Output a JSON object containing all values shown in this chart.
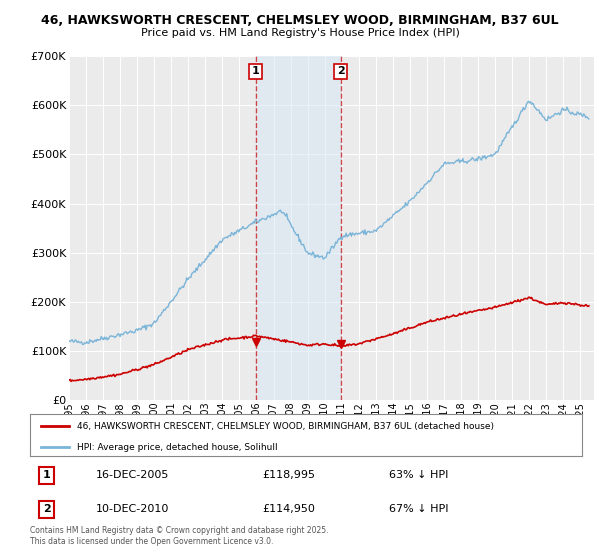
{
  "title": "46, HAWKSWORTH CRESCENT, CHELMSLEY WOOD, BIRMINGHAM, B37 6UL",
  "subtitle": "Price paid vs. HM Land Registry's House Price Index (HPI)",
  "footer": "Contains HM Land Registry data © Crown copyright and database right 2025.\nThis data is licensed under the Open Government Licence v3.0.",
  "legend_line1": "46, HAWKSWORTH CRESCENT, CHELMSLEY WOOD, BIRMINGHAM, B37 6UL (detached house)",
  "legend_line2": "HPI: Average price, detached house, Solihull",
  "transaction1_date": "16-DEC-2005",
  "transaction1_price": "£118,995",
  "transaction1_hpi": "63% ↓ HPI",
  "transaction2_date": "10-DEC-2010",
  "transaction2_price": "£114,950",
  "transaction2_hpi": "67% ↓ HPI",
  "hpi_color": "#7ab4d8",
  "price_color": "#cc0000",
  "vline_color": "#cc4444",
  "span_color": "#d6e8f5",
  "background_color": "#ffffff",
  "plot_bg_color": "#ebebeb",
  "ylim": [
    0,
    700000
  ],
  "yticks": [
    0,
    100000,
    200000,
    300000,
    400000,
    500000,
    600000,
    700000
  ],
  "x_start_year": 1995,
  "x_end_year": 2025,
  "transaction1_year": 2005.96,
  "transaction2_year": 2010.94,
  "t1_price": 118995,
  "t2_price": 114950
}
